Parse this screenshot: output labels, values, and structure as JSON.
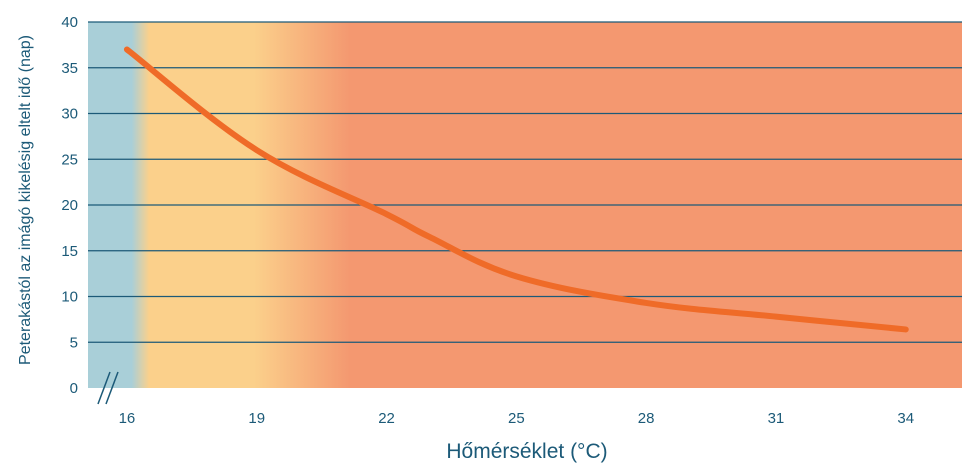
{
  "chart_data": {
    "type": "line",
    "title": "",
    "xlabel": "Hőmérséklet (°C)",
    "ylabel": "Peterakástól az imágó kikelésig eltelt idő (nap)",
    "x_ticks": [
      "16",
      "19",
      "22",
      "25",
      "28",
      "31",
      "34"
    ],
    "y_ticks": [
      "0",
      "5",
      "10",
      "15",
      "20",
      "25",
      "30",
      "35",
      "40"
    ],
    "xlim": [
      15.1,
      35.3
    ],
    "ylim": [
      0,
      40
    ],
    "grid": "horizontal",
    "axis_break": "//",
    "series": [
      {
        "x": [
          16,
          19,
          22,
          23,
          25,
          28,
          31,
          34
        ],
        "y": [
          37,
          26,
          19,
          16.5,
          12.2,
          9.3,
          7.8,
          6.4
        ],
        "color": "#ef6b28"
      }
    ],
    "colors": {
      "cold_band": "#a9cfd8",
      "warm_band": "#fbd08b",
      "hot_band": "#f49870",
      "grid": "#1c5a78",
      "text": "#1c5a78"
    }
  }
}
